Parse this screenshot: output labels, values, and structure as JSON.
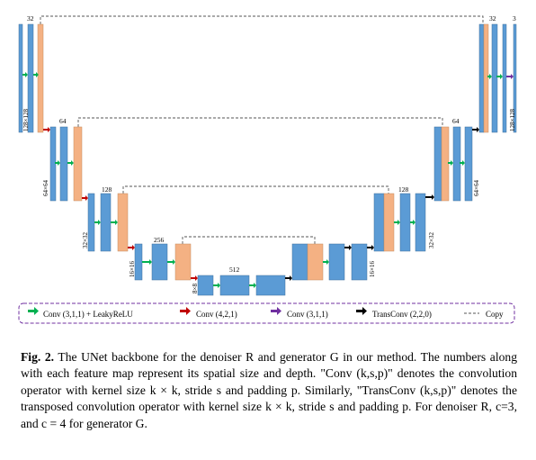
{
  "diagram": {
    "channel_labels": {
      "enc1": "32",
      "enc2": "64",
      "enc3": "128",
      "enc4": "256",
      "bottleneck": "512",
      "dec4": "128",
      "dec3": "64",
      "dec2": "32",
      "output": "3"
    },
    "size_labels": {
      "enc1": "128×128",
      "enc2": "64×64",
      "enc3": "32×32",
      "enc4": "16×16",
      "bottleneck": "8×8",
      "dec4": "16×16",
      "dec3": "32×32",
      "dec2": "64×64",
      "dec1": "128×128"
    },
    "colors": {
      "feature_map": "#5b9bd5",
      "copy_map": "#f4b183",
      "conv_leaky": "#00b050",
      "conv_down": "#c00000",
      "conv_plain": "#7030a0",
      "transconv": "#000000",
      "legend_border": "#7030a0"
    }
  },
  "legend": {
    "conv_leaky": "Conv (3,1,1) + LeakyReLU",
    "conv_down": "Conv (4,2,1)",
    "conv_plain": "Conv (3,1,1)",
    "transconv": "TransConv (2,2,0)",
    "copy": "Copy"
  },
  "caption": {
    "label": "Fig. 2.",
    "text": "The UNet backbone for the denoiser R and generator G in our method. The numbers along with each feature map represent its spatial size and depth. \"Conv (k,s,p)\" denotes the convolution operator with kernel size k × k, stride s and padding p. Similarly, \"TransConv (k,s,p)\" denotes the transposed convolution operator with kernel size k × k, stride s and padding p. For denoiser R, c=3, and c = 4 for generator G."
  }
}
